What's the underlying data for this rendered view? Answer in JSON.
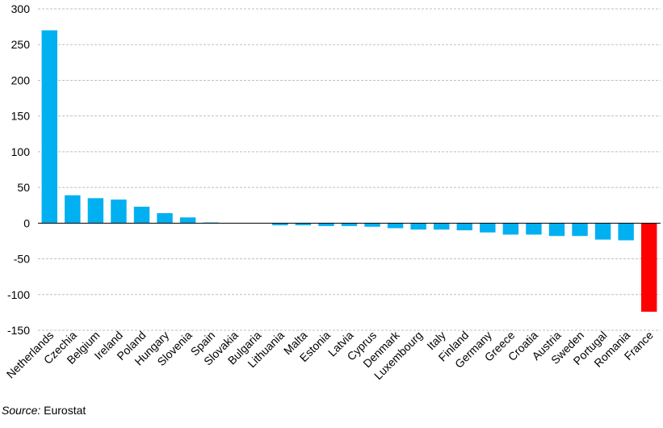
{
  "chart_data": {
    "type": "bar",
    "categories": [
      "Netherlands",
      "Czechia",
      "Belgium",
      "Ireland",
      "Poland",
      "Hungary",
      "Slovenia",
      "Spain",
      "Slovakia",
      "Bulgaria",
      "Lithuania",
      "Malta",
      "Estonia",
      "Latvia",
      "Cyprus",
      "Denmark",
      "Luxembourg",
      "Italy",
      "Finland",
      "Germany",
      "Greece",
      "Croatia",
      "Austria",
      "Sweden",
      "Portugal",
      "Romania",
      "France"
    ],
    "values": [
      270,
      39,
      35,
      33,
      23,
      14,
      8,
      1,
      0,
      0,
      -3,
      -3,
      -4,
      -4,
      -5,
      -7,
      -9,
      -9,
      -10,
      -13,
      -16,
      -16,
      -18,
      -18,
      -23,
      -24,
      -124
    ],
    "yticks": [
      300,
      250,
      200,
      150,
      100,
      50,
      0,
      -50,
      -100,
      -150
    ],
    "ylim": [
      -150,
      300
    ],
    "grid": true,
    "colors": {
      "default": "#00b0f0",
      "highlight": "#ff0000"
    },
    "highlight": [
      "France"
    ]
  },
  "source": {
    "label": "Source:",
    "text": "Eurostat"
  }
}
